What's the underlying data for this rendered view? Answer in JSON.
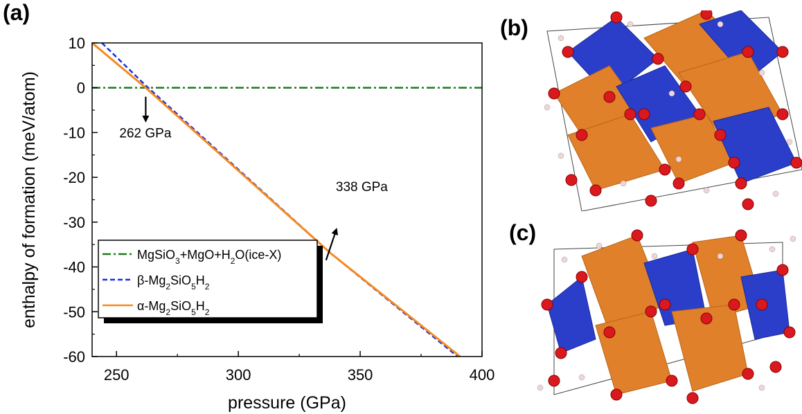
{
  "panel_labels": {
    "a": "(a)",
    "b": "(b)",
    "c": "(c)"
  },
  "chart_data": {
    "type": "line",
    "xlabel": "pressure (GPa)",
    "ylabel": "enthalpy of formation (meV/atom)",
    "xlim": [
      240,
      400
    ],
    "ylim": [
      -60,
      10
    ],
    "xticks": [
      250,
      300,
      350,
      400
    ],
    "yticks": [
      10,
      0,
      -10,
      -20,
      -30,
      -40,
      -50,
      -60
    ],
    "grid": false,
    "legend_position": "bottom-left",
    "series": [
      {
        "name": "MgSiO3+MgO+H2O(ice-X)",
        "legend_html": "MgSiO<tspan baseline-shift='sub' font-size='12'>3</tspan>+MgO+H<tspan baseline-shift='sub' font-size='12'>2</tspan>O(ice-X)",
        "style": "dashdot",
        "color": "#1e7a1e",
        "x": [
          240,
          400
        ],
        "y": [
          0,
          0
        ]
      },
      {
        "name": "β-Mg2SiO5H2",
        "legend_html": "β-Mg<tspan baseline-shift='sub' font-size='12'>2</tspan>SiO<tspan baseline-shift='sub' font-size='12'>5</tspan>H<tspan baseline-shift='sub' font-size='12'>2</tspan>",
        "style": "dashed",
        "color": "#1a2ee0",
        "x": [
          244,
          262,
          338,
          390
        ],
        "y": [
          10,
          0.5,
          -37,
          -60
        ]
      },
      {
        "name": "α-Mg2SiO5H2",
        "legend_html": "α-Mg<tspan baseline-shift='sub' font-size='12'>2</tspan>SiO<tspan baseline-shift='sub' font-size='12'>5</tspan>H<tspan baseline-shift='sub' font-size='12'>2</tspan>",
        "style": "solid",
        "color": "#f5891f",
        "x": [
          240,
          262,
          338,
          391
        ],
        "y": [
          10,
          0,
          -37,
          -60
        ]
      }
    ],
    "annotations": [
      {
        "text": "262 GPa",
        "x": 262,
        "y": -10,
        "arrow_from": [
          262,
          -2
        ],
        "arrow_to": [
          262,
          -7
        ]
      },
      {
        "text": "338 GPa",
        "x": 340,
        "y": -22,
        "arrow_from": [
          336,
          -38.5
        ],
        "arrow_to": [
          340,
          -32
        ]
      }
    ]
  }
}
